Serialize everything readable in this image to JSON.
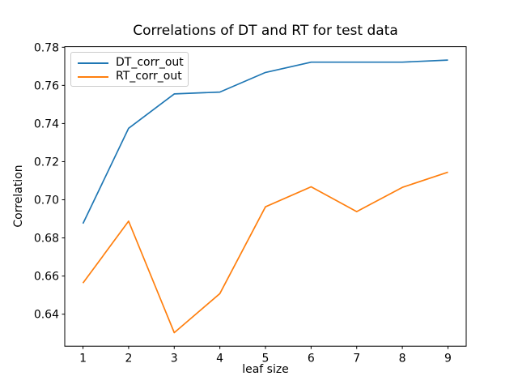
{
  "figure": {
    "background": "#ffffff"
  },
  "chart_data": {
    "type": "line",
    "title": "Correlations of DT and RT for test data",
    "xlabel": "leaf size",
    "ylabel": "Correlation",
    "x": [
      1,
      2,
      3,
      4,
      5,
      6,
      7,
      8,
      9
    ],
    "series": [
      {
        "name": "DT_corr_out",
        "color": "#1f77b4",
        "values": [
          0.6875,
          0.7375,
          0.7555,
          0.7565,
          0.7668,
          0.7722,
          0.7722,
          0.7722,
          0.7733
        ]
      },
      {
        "name": "RT_corr_out",
        "color": "#ff7f0e",
        "values": [
          0.6563,
          0.6888,
          0.6303,
          0.6508,
          0.6963,
          0.7068,
          0.6938,
          0.7065,
          0.7145
        ]
      }
    ],
    "xticks": [
      1,
      2,
      3,
      4,
      5,
      6,
      7,
      8,
      9
    ],
    "yticks": [
      0.64,
      0.66,
      0.68,
      0.7,
      0.72,
      0.74,
      0.76,
      0.78
    ],
    "xlim": [
      0.6,
      9.4
    ],
    "ylim": [
      0.6232,
      0.7803
    ],
    "grid": false,
    "legend_position": "upper left",
    "axis_color": "#000000",
    "text_color": "#000000"
  }
}
